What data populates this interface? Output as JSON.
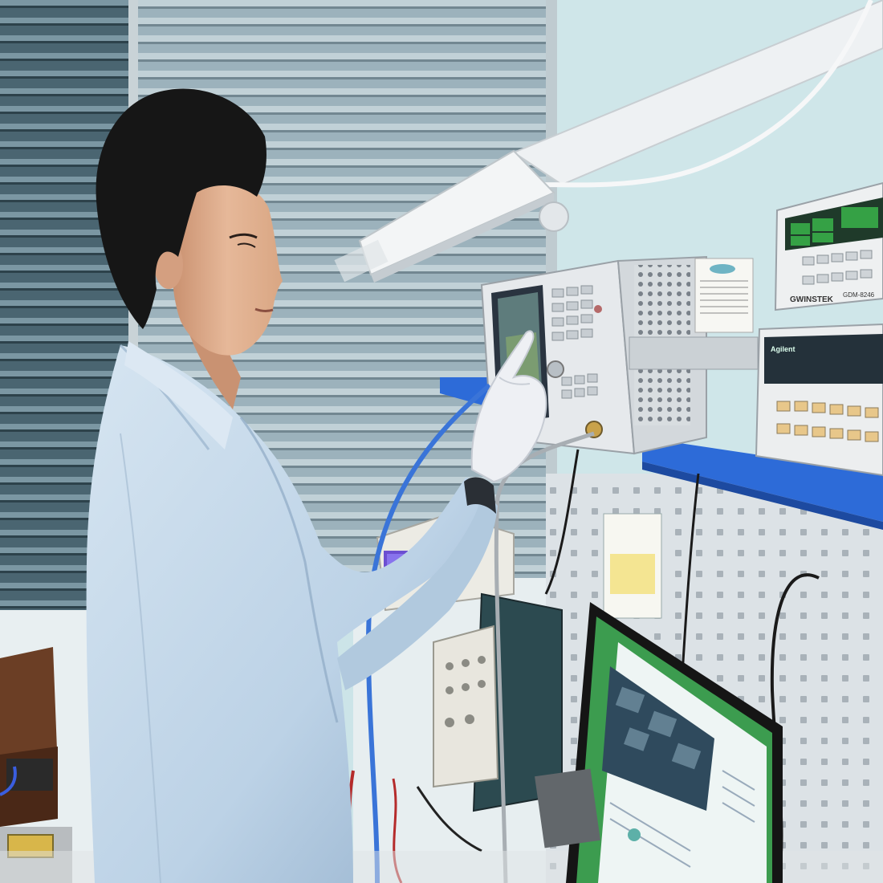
{
  "scene": {
    "colors": {
      "wall": "#cfe6ea",
      "blinds": "#7f9aa6",
      "window_glass": "#3f5966",
      "lab_coat": "#c5d9ea",
      "lab_coat_shadow": "#8ea9c4",
      "hair": "#1a1a1a",
      "skin": "#e2b597",
      "glove": "#eef0f4",
      "instrument_body": "#e9ecee",
      "instrument_panel": "#d7dbe0",
      "shelf_blue": "#2d6bd8",
      "pegboard": "#d9dfe4",
      "monitor_frame": "#151515",
      "monitor_screen_green": "#3c9c4f",
      "monitor_page": "#eef5f4",
      "cable_blue": "#3a74d8",
      "lamp_arm": "#f2f4f5"
    },
    "icons": {
      "lamp": "lamp-icon",
      "analyzer": "network-analyzer-icon",
      "multimeter": "multimeter-icon",
      "monitor": "monitor-icon"
    }
  },
  "labels": {
    "gwinstek": "GWINSTEK",
    "gwinstek_model": "GDM-8246",
    "agilent": "Agilent"
  }
}
